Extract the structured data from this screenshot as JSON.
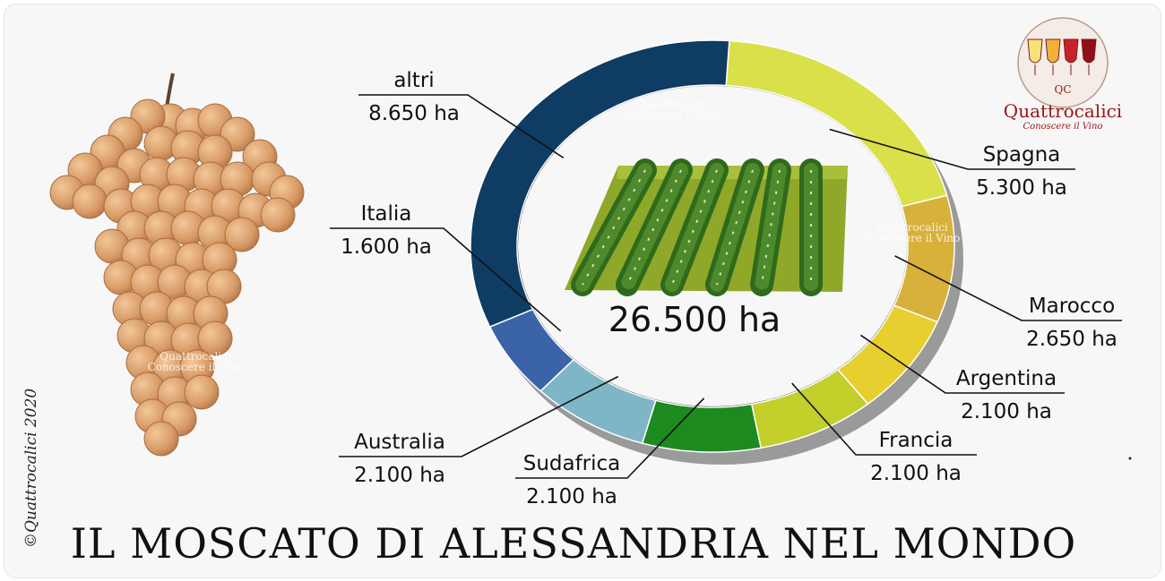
{
  "title": "IL MOSCATO DI ALESSANDRIA NEL MONDO",
  "copyright": "©Quattrocalici 2020",
  "logo": {
    "monogram": "QC",
    "name": "Quattrocalici",
    "tagline": "Conoscere il Vino"
  },
  "watermark": {
    "name": "Quattrocalici",
    "tagline": "Conoscere il Vino"
  },
  "icons": [
    "grape-bunch-icon",
    "vineyard-icon",
    "wine-glasses-icon"
  ],
  "chart_data": {
    "type": "pie",
    "variant": "donut",
    "center_label": "26.500 ha",
    "unit": "ha",
    "slices": [
      {
        "name": "Spagna",
        "value": 5300,
        "label": "5.300 ha",
        "color": "#d9e04a"
      },
      {
        "name": "Marocco",
        "value": 2650,
        "label": "2.650 ha",
        "color": "#d7b13a"
      },
      {
        "name": "Argentina",
        "value": 2100,
        "label": "2.100 ha",
        "color": "#e6cf2e"
      },
      {
        "name": "Francia",
        "value": 2100,
        "label": "2.100 ha",
        "color": "#c3cf2a"
      },
      {
        "name": "Sudafrica",
        "value": 2100,
        "label": "2.100 ha",
        "color": "#1d8a1f"
      },
      {
        "name": "Australia",
        "value": 2100,
        "label": "2.100 ha",
        "color": "#7fb6c7"
      },
      {
        "name": "Italia",
        "value": 1600,
        "label": "1.600 ha",
        "color": "#3b63a8"
      },
      {
        "name": "altri",
        "value": 8650,
        "label": "8.650 ha",
        "color": "#0e3c63"
      }
    ]
  }
}
